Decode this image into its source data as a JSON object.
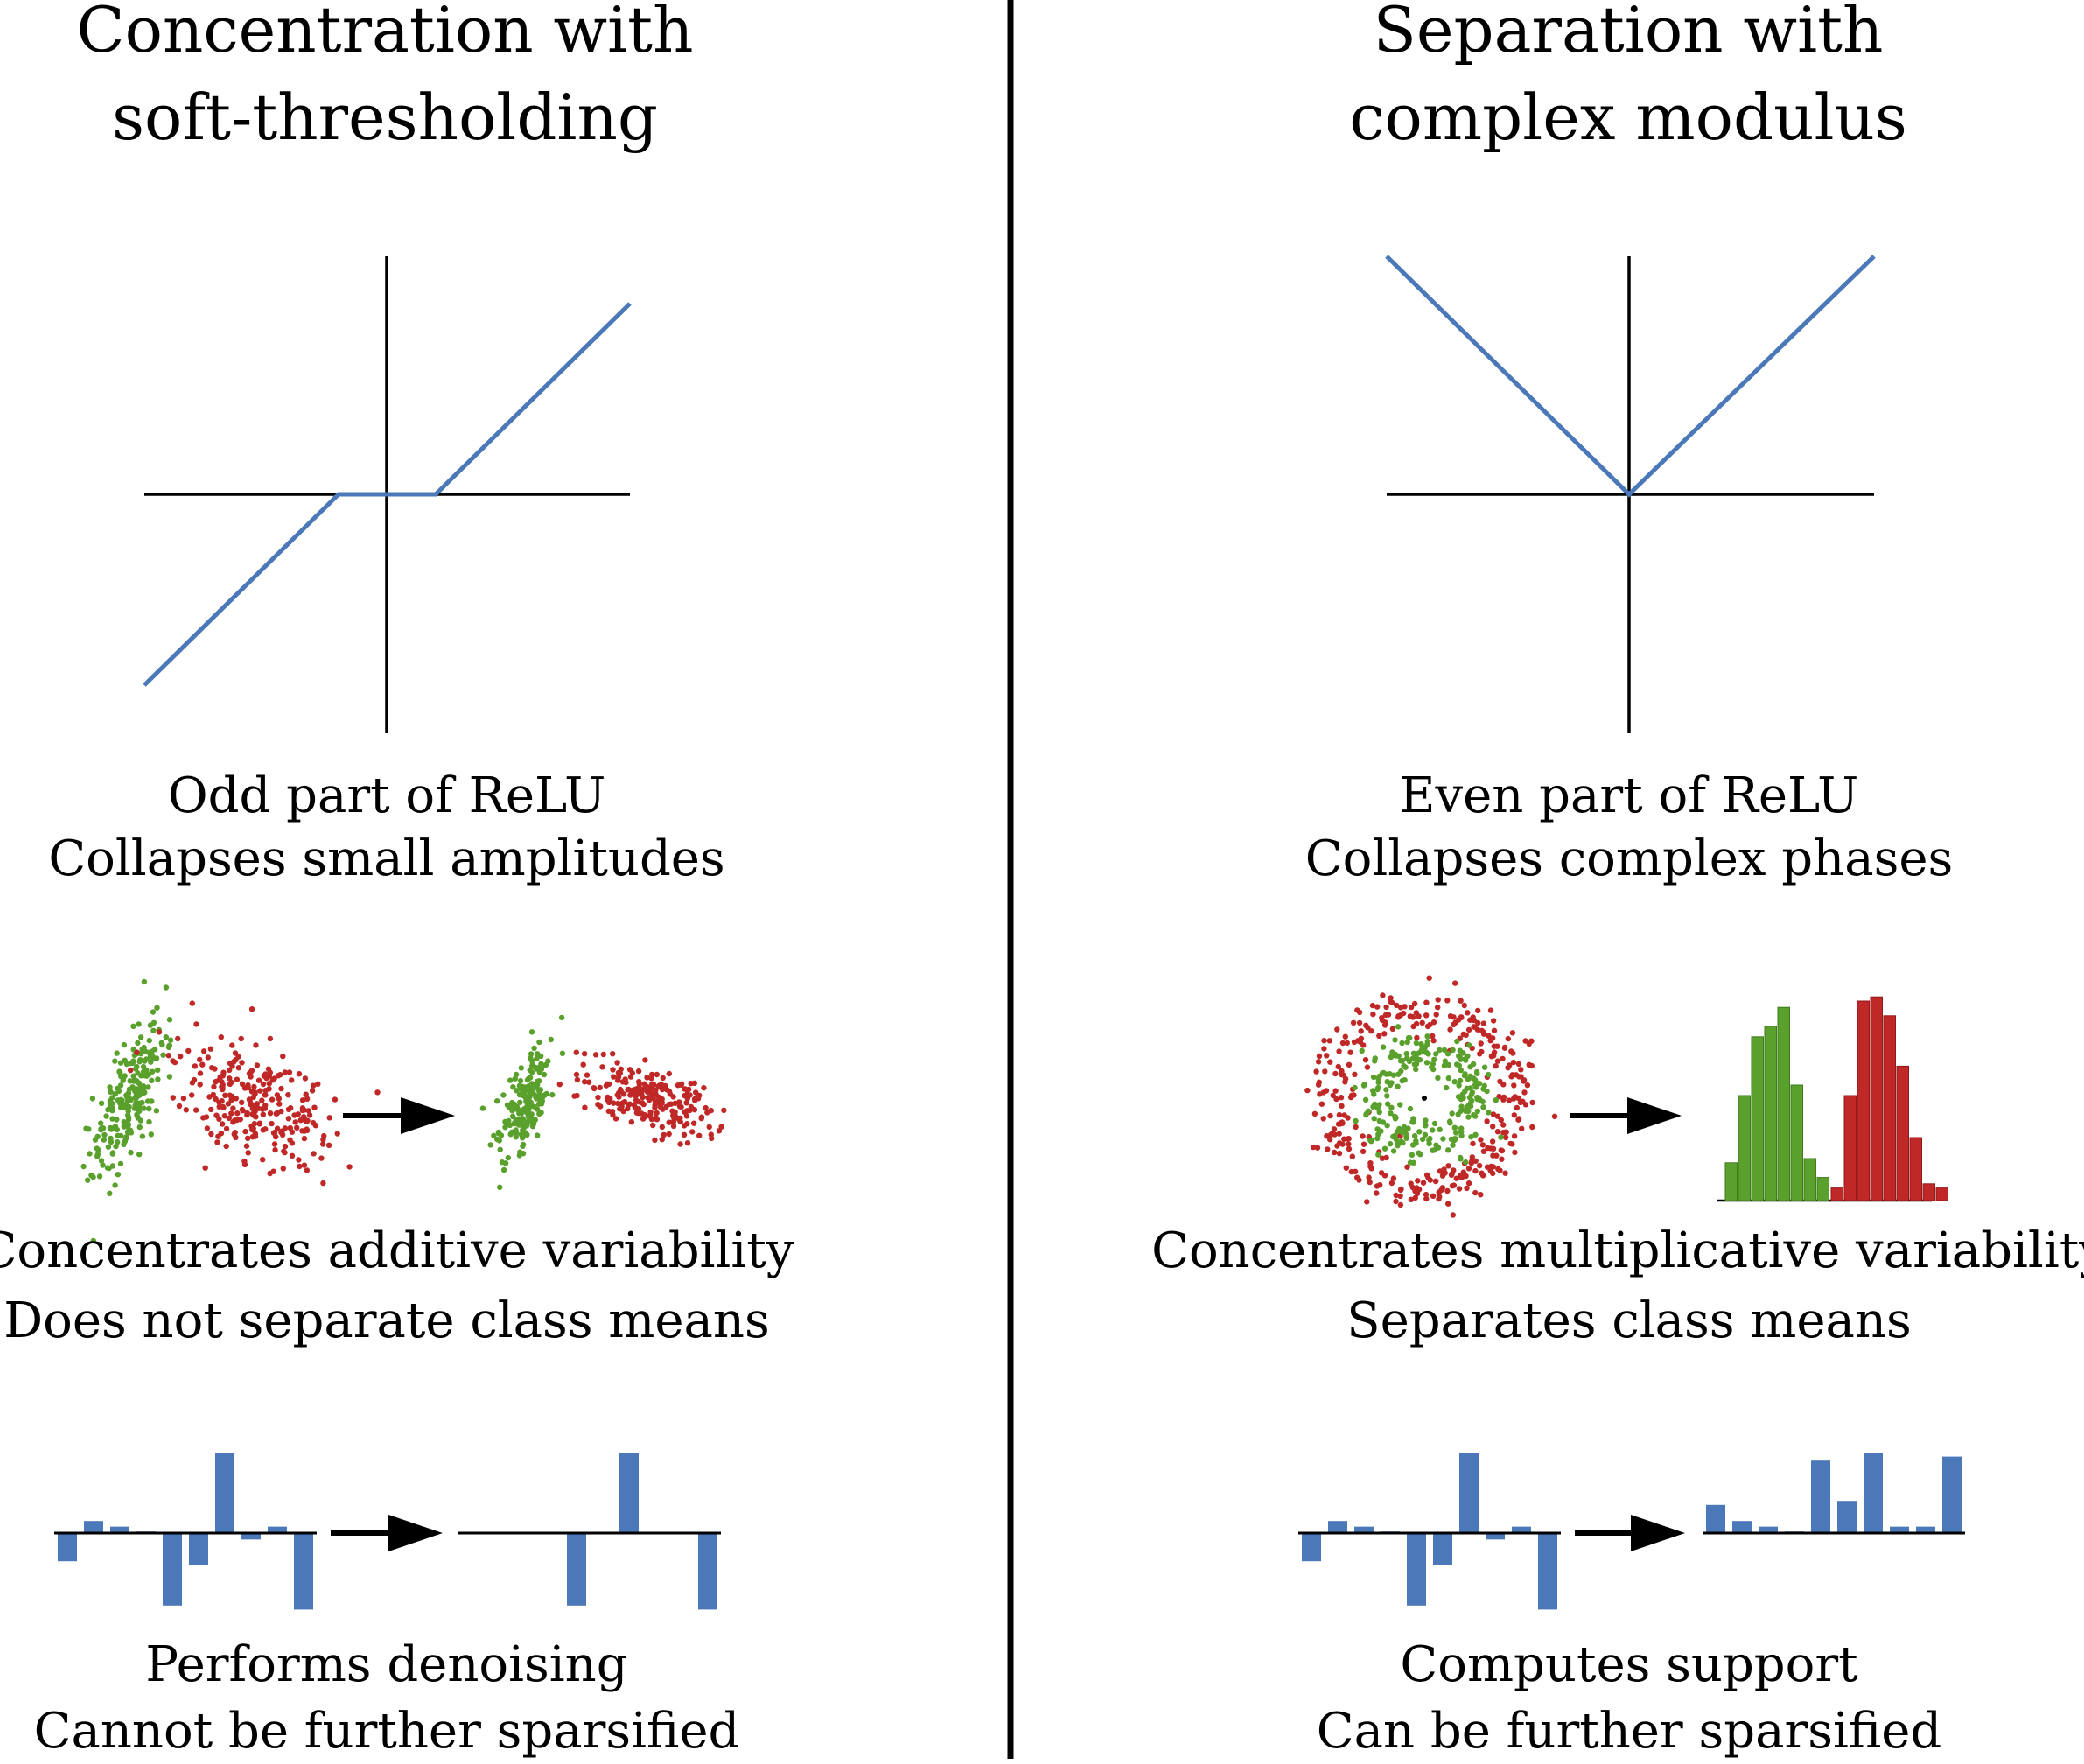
{
  "left": {
    "title_line1": "Concentration with",
    "title_line2": "soft-thresholding",
    "caption1_line1": "Odd part of ReLU",
    "caption1_line2": "Collapses small amplitudes",
    "caption2_line1": "Concentrates additive variability",
    "caption2_line2": "Does not separate class means",
    "caption3_line1": "Performs denoising",
    "caption3_line2": "Cannot be further sparsified",
    "plot_function": "soft-thresholding",
    "scatter_classes": [
      "green",
      "red"
    ],
    "sparse_vector_before": [
      -0.35,
      0.15,
      0.08,
      0.02,
      -0.9,
      -0.4,
      1.0,
      -0.08,
      0.08,
      -0.95
    ],
    "sparse_vector_after": [
      0,
      0,
      0,
      0,
      -0.9,
      0,
      1.0,
      0,
      0,
      -0.95
    ]
  },
  "right": {
    "title_line1": "Separation with",
    "title_line2": "complex modulus",
    "caption1_line1": "Even part of ReLU",
    "caption1_line2": "Collapses complex phases",
    "caption2_line1": "Concentrates multiplicative variability",
    "caption2_line2": "Separates class means",
    "caption3_line1": "Computes support",
    "caption3_line2": "Can be further sparsified",
    "plot_function": "absolute-value",
    "histogram_green": [
      0.18,
      0.5,
      0.78,
      0.83,
      0.92,
      0.55,
      0.2,
      0.11
    ],
    "histogram_red": [
      0.06,
      0.5,
      0.95,
      0.97,
      0.88,
      0.64,
      0.3,
      0.08,
      0.06
    ],
    "sparse_vector_before": [
      -0.35,
      0.15,
      0.08,
      0.02,
      -0.9,
      -0.4,
      1.0,
      -0.08,
      0.08,
      -0.95
    ],
    "sparse_vector_after": [
      0.35,
      0.15,
      0.08,
      0.02,
      0.9,
      0.4,
      1.0,
      0.08,
      0.08,
      0.95
    ]
  },
  "colors": {
    "curve": "#4a78b8",
    "green": "#5aa02c",
    "red": "#c02727",
    "bar": "#4a78b8",
    "axis": "#000000"
  }
}
